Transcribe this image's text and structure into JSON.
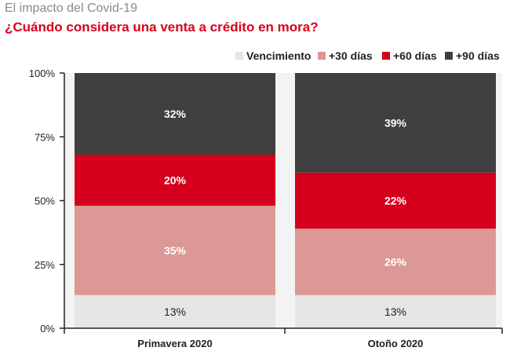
{
  "header": {
    "title": "El impacto del Covid-19",
    "subtitle": "¿Cuándo considera una venta a crédito en mora?"
  },
  "chart_data": {
    "type": "bar",
    "stacked": true,
    "categories": [
      "Primavera 2020",
      "Otoño 2020"
    ],
    "series": [
      {
        "name": "Vencimiento",
        "values": [
          13,
          13
        ],
        "labels": [
          "13%",
          "13%"
        ],
        "color": "#e6e6e6",
        "label_color": "#222222"
      },
      {
        "name": "+30 días",
        "values": [
          35,
          26
        ],
        "labels": [
          "35%",
          "26%"
        ],
        "color": "#db9894",
        "label_color": "#ffffff"
      },
      {
        "name": "+60 días",
        "values": [
          20,
          22
        ],
        "labels": [
          "20%",
          "22%"
        ],
        "color": "#d6001c",
        "label_color": "#ffffff"
      },
      {
        "name": "+90 días",
        "values": [
          32,
          39
        ],
        "labels": [
          "32%",
          "39%"
        ],
        "color": "#3f3f3f",
        "label_color": "#ffffff"
      }
    ],
    "yticks": [
      {
        "value": 0,
        "label": "0%"
      },
      {
        "value": 25,
        "label": "25%"
      },
      {
        "value": 50,
        "label": "50%"
      },
      {
        "value": 75,
        "label": "75%"
      },
      {
        "value": 100,
        "label": "100%"
      }
    ],
    "ylim": [
      0,
      100
    ],
    "legend_position": "top-right",
    "grid": false
  }
}
